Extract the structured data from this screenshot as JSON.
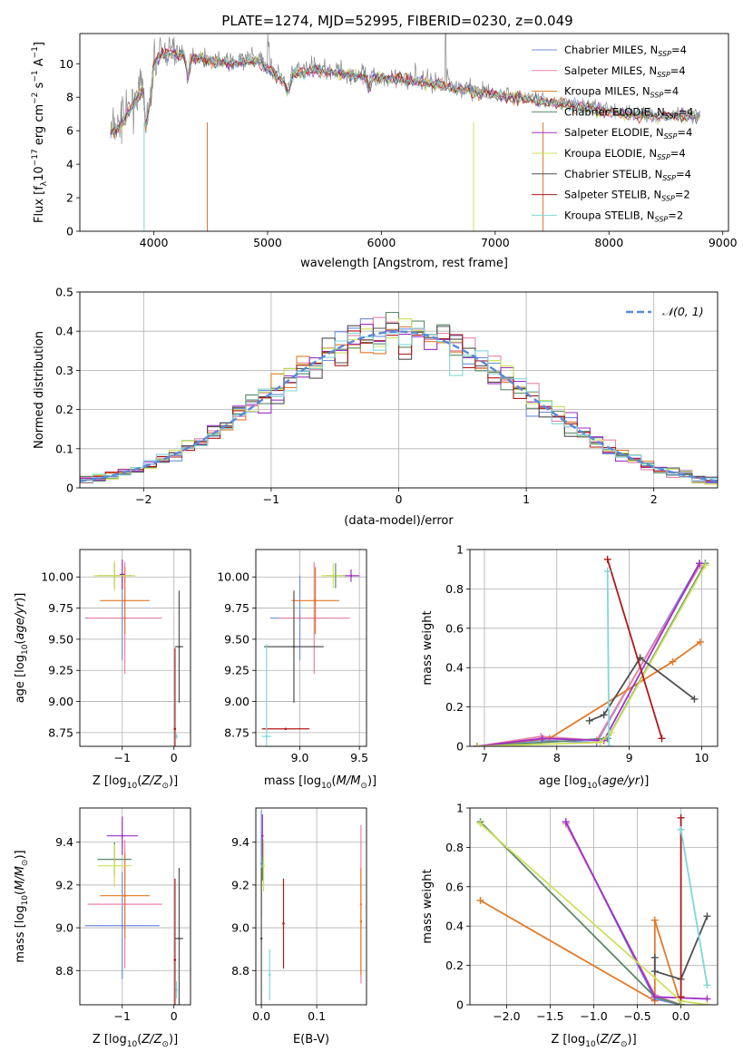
{
  "title": "PLATE=1274, MJD=52995, FIBERID=0230, z=0.049",
  "colors": {
    "chabrier_miles": "#6f8ee0",
    "salpeter_miles": "#ea83a8",
    "kroupa_miles": "#e07a2a",
    "chabrier_elodie": "#5a8a6a",
    "salpeter_elodie": "#a030c8",
    "kroupa_elodie": "#cfe05a",
    "chabrier_stelib": "#505050",
    "salpeter_stelib": "#b01818",
    "kroupa_stelib": "#7fd8d8",
    "data": "#8a8a8a",
    "normal": "#5a8ad8"
  },
  "legend_spectrum": [
    {
      "label": "Chabrier MILES, N",
      "sub": "SSP",
      "tail": "=4",
      "color": "#6f8ee0"
    },
    {
      "label": "Salpeter MILES, N",
      "sub": "SSP",
      "tail": "=4",
      "color": "#ea83a8"
    },
    {
      "label": "Kroupa MILES, N",
      "sub": "SSP",
      "tail": "=4",
      "color": "#e07a2a"
    },
    {
      "label": "Chabrier ELODIE, N",
      "sub": "SSP",
      "tail": "=4",
      "color": "#5a8a6a"
    },
    {
      "label": "Salpeter ELODIE, N",
      "sub": "SSP",
      "tail": "=4",
      "color": "#a030c8"
    },
    {
      "label": "Kroupa ELODIE, N",
      "sub": "SSP",
      "tail": "=4",
      "color": "#cfe05a"
    },
    {
      "label": "Chabrier STELIB, N",
      "sub": "SSP",
      "tail": "=4",
      "color": "#505050"
    },
    {
      "label": "Salpeter STELIB, N",
      "sub": "SSP",
      "tail": "=2",
      "color": "#b01818"
    },
    {
      "label": "Kroupa STELIB, N",
      "sub": "SSP",
      "tail": "=2",
      "color": "#7fd8d8"
    }
  ],
  "legend_hist": {
    "label": "𝒩(0, 1)"
  },
  "chart_data": [
    {
      "id": "spectrum",
      "type": "line",
      "xlabel": "wavelength [Angstrom, rest frame]",
      "ylabel": "Flux [f",
      "xlim": [
        3350,
        9050
      ],
      "ylim": [
        0,
        11.8
      ],
      "xticks": [
        4000,
        5000,
        6000,
        7000,
        8000,
        9000
      ],
      "yticks": [
        0,
        2,
        4,
        6,
        8,
        10
      ],
      "continuum": {
        "x": [
          3600,
          3700,
          3800,
          3900,
          4000,
          4100,
          4300,
          4500,
          4700,
          4900,
          5100,
          5200,
          5400,
          5600,
          5900,
          6200,
          6500,
          6700,
          7000,
          7300,
          7600,
          7900,
          8200,
          8500,
          8800
        ],
        "y": [
          5.9,
          6.4,
          7.5,
          8.6,
          10.2,
          10.8,
          10.6,
          10.3,
          10.1,
          10.4,
          9.3,
          9.5,
          9.8,
          9.6,
          9.3,
          9.2,
          8.9,
          8.6,
          8.3,
          8.0,
          7.7,
          7.4,
          7.1,
          7.0,
          7.0
        ]
      }
    },
    {
      "id": "residuals",
      "type": "area",
      "xlabel": "(data-model)/error",
      "ylabel": "Normed distribution",
      "xlim": [
        -2.5,
        2.5
      ],
      "ylim": [
        0,
        0.5
      ],
      "xticks": [
        -2,
        -1,
        0,
        1,
        2
      ],
      "xtick_labels": [
        "−2",
        "−1",
        "0",
        "1",
        "2"
      ],
      "yticks": [
        0.0,
        0.1,
        0.2,
        0.3,
        0.4,
        0.5
      ],
      "grid": true,
      "legend_position": "top-right",
      "bin_width": 0.1
    },
    {
      "id": "z_vs_age",
      "type": "scatter",
      "xlabel": "Z [log",
      "ylabel": "age  [log",
      "xlim": [
        -1.82,
        0.32
      ],
      "ylim": [
        8.64,
        10.22
      ],
      "xticks": [
        -1,
        0
      ],
      "xtick_labels": [
        "−1",
        "0"
      ],
      "yticks": [
        8.75,
        9.0,
        9.25,
        9.5,
        9.75,
        10.0
      ],
      "ytick_labels": [
        "8.75",
        "9.00",
        "9.25",
        "9.50",
        "9.75",
        "10.00"
      ],
      "points": [
        {
          "series": "Chabrier MILES",
          "x": -1.0,
          "y": 9.67,
          "xerr": 0.72,
          "yerr": 0.34,
          "color": "#6f8ee0"
        },
        {
          "series": "Salpeter MILES",
          "x": -0.95,
          "y": 9.67,
          "xerr": 0.72,
          "yerr": 0.45,
          "color": "#ea83a8"
        },
        {
          "series": "Kroupa MILES",
          "x": -0.95,
          "y": 9.81,
          "xerr": 0.48,
          "yerr": 0.27,
          "color": "#e07a2a"
        },
        {
          "series": "Chabrier ELODIE",
          "x": -1.15,
          "y": 10.01,
          "xerr": 0.33,
          "yerr": 0.1,
          "color": "#5a8a6a"
        },
        {
          "series": "Salpeter ELODIE",
          "x": -1.0,
          "y": 10.02,
          "xerr": 0.05,
          "yerr": 0.12,
          "color": "#a030c8"
        },
        {
          "series": "Kroupa ELODIE",
          "x": -1.15,
          "y": 10.01,
          "xerr": 0.4,
          "yerr": 0.12,
          "color": "#cfe05a"
        },
        {
          "series": "Chabrier STELIB",
          "x": 0.1,
          "y": 9.44,
          "xerr": 0.08,
          "yerr": 0.45,
          "color": "#505050"
        },
        {
          "series": "Salpeter STELIB",
          "x": 0.02,
          "y": 8.78,
          "xerr": 0.0,
          "yerr": 0.65,
          "color": "#b01818"
        },
        {
          "series": "Kroupa STELIB",
          "x": 0.05,
          "y": 8.72,
          "xerr": 0.02,
          "yerr": 0.02,
          "color": "#7fd8d8"
        }
      ]
    },
    {
      "id": "mass_vs_age",
      "type": "scatter",
      "xlabel": "mass [log",
      "xlim": [
        8.63,
        9.56
      ],
      "ylim": [
        8.64,
        10.22
      ],
      "xticks": [
        9.0,
        9.5
      ],
      "xtick_labels": [
        "9.0",
        "9.5"
      ],
      "yticks": [
        8.75,
        9.0,
        9.25,
        9.5,
        9.75,
        10.0
      ],
      "ytick_labels": [
        "8.75",
        "9.00",
        "9.25",
        "9.50",
        "9.75",
        "10.00"
      ],
      "points": [
        {
          "series": "Chabrier MILES",
          "x": 9.0,
          "y": 9.67,
          "xerr": 0.25,
          "yerr": 0.34,
          "color": "#6f8ee0"
        },
        {
          "series": "Salpeter MILES",
          "x": 9.12,
          "y": 9.67,
          "xerr": 0.3,
          "yerr": 0.45,
          "color": "#ea83a8"
        },
        {
          "series": "Kroupa MILES",
          "x": 9.13,
          "y": 9.81,
          "xerr": 0.2,
          "yerr": 0.27,
          "color": "#e07a2a"
        },
        {
          "series": "Chabrier ELODIE",
          "x": 9.3,
          "y": 10.01,
          "xerr": 0.08,
          "yerr": 0.1,
          "color": "#5a8a6a"
        },
        {
          "series": "Salpeter ELODIE",
          "x": 9.43,
          "y": 10.01,
          "xerr": 0.07,
          "yerr": 0.05,
          "color": "#a030c8"
        },
        {
          "series": "Kroupa ELODIE",
          "x": 9.28,
          "y": 10.01,
          "xerr": 0.1,
          "yerr": 0.1,
          "color": "#cfe05a"
        },
        {
          "series": "Chabrier STELIB",
          "x": 8.95,
          "y": 9.44,
          "xerr": 0.25,
          "yerr": 0.45,
          "color": "#505050"
        },
        {
          "series": "Salpeter STELIB",
          "x": 8.88,
          "y": 8.78,
          "xerr": 0.2,
          "yerr": 0.0,
          "color": "#b01818"
        },
        {
          "series": "Kroupa STELIB",
          "x": 8.72,
          "y": 8.72,
          "xerr": 0.04,
          "yerr": 0.74,
          "color": "#7fd8d8"
        }
      ]
    },
    {
      "id": "age_weights",
      "type": "line",
      "xlabel": "age  [log",
      "ylabel": "mass weight",
      "xlim": [
        6.8,
        10.22
      ],
      "ylim": [
        0,
        1
      ],
      "xticks": [
        7,
        8,
        9,
        10
      ],
      "yticks": [
        0.0,
        0.2,
        0.4,
        0.6,
        0.8,
        1.0
      ],
      "series": [
        {
          "name": "Chabrier MILES",
          "color": "#6f8ee0",
          "points": [
            [
              6.9,
              0.0
            ],
            [
              7.78,
              0.03
            ],
            [
              8.55,
              0.02
            ],
            [
              9.97,
              0.93
            ]
          ]
        },
        {
          "name": "Salpeter MILES",
          "color": "#ea83a8",
          "points": [
            [
              6.9,
              0.0
            ],
            [
              7.78,
              0.05
            ],
            [
              8.55,
              0.03
            ],
            [
              9.98,
              0.92
            ]
          ]
        },
        {
          "name": "Kroupa MILES",
          "color": "#e07a2a",
          "points": [
            [
              6.9,
              0.0
            ],
            [
              7.9,
              0.04
            ],
            [
              9.6,
              0.43
            ],
            [
              9.98,
              0.53
            ]
          ]
        },
        {
          "name": "Chabrier ELODIE",
          "color": "#5a8a6a",
          "points": [
            [
              6.9,
              0.0
            ],
            [
              8.7,
              0.04
            ],
            [
              10.05,
              0.93
            ]
          ]
        },
        {
          "name": "Salpeter ELODIE",
          "color": "#a030c8",
          "points": [
            [
              6.9,
              0.0
            ],
            [
              7.8,
              0.04
            ],
            [
              8.65,
              0.03
            ],
            [
              9.97,
              0.93
            ]
          ]
        },
        {
          "name": "Kroupa ELODIE",
          "color": "#cfe05a",
          "points": [
            [
              6.9,
              0.0
            ],
            [
              8.6,
              0.02
            ],
            [
              8.75,
              0.07
            ],
            [
              10.05,
              0.92
            ]
          ]
        },
        {
          "name": "Chabrier STELIB",
          "color": "#505050",
          "points": [
            [
              8.45,
              0.13
            ],
            [
              8.65,
              0.16
            ],
            [
              9.15,
              0.45
            ],
            [
              9.9,
              0.24
            ]
          ]
        },
        {
          "name": "Salpeter STELIB",
          "color": "#b01818",
          "points": [
            [
              8.7,
              0.95
            ],
            [
              9.45,
              0.04
            ]
          ]
        },
        {
          "name": "Kroupa STELIB",
          "color": "#7fd8d8",
          "points": [
            [
              8.7,
              0.89
            ],
            [
              8.72,
              0.0
            ]
          ]
        }
      ]
    },
    {
      "id": "z_vs_mass",
      "type": "scatter",
      "xlabel": "Z [log",
      "ylabel": "mass [log",
      "xlim": [
        -1.82,
        0.32
      ],
      "ylim": [
        8.64,
        9.56
      ],
      "xticks": [
        -1,
        0
      ],
      "xtick_labels": [
        "−1",
        "0"
      ],
      "yticks": [
        8.8,
        9.0,
        9.2,
        9.4
      ],
      "ytick_labels": [
        "8.8",
        "9.0",
        "9.2",
        "9.4"
      ],
      "points": [
        {
          "series": "Chabrier MILES",
          "x": -1.0,
          "y": 9.01,
          "xerr": 0.72,
          "yerr": 0.25,
          "color": "#6f8ee0"
        },
        {
          "series": "Salpeter MILES",
          "x": -0.95,
          "y": 9.11,
          "xerr": 0.72,
          "yerr": 0.3,
          "color": "#ea83a8"
        },
        {
          "series": "Kroupa MILES",
          "x": -0.95,
          "y": 9.15,
          "xerr": 0.48,
          "yerr": 0.2,
          "color": "#e07a2a"
        },
        {
          "series": "Chabrier ELODIE",
          "x": -1.15,
          "y": 9.32,
          "xerr": 0.33,
          "yerr": 0.08,
          "color": "#5a8a6a"
        },
        {
          "series": "Salpeter ELODIE",
          "x": -1.0,
          "y": 9.43,
          "xerr": 0.3,
          "yerr": 0.09,
          "color": "#a030c8"
        },
        {
          "series": "Kroupa ELODIE",
          "x": -1.15,
          "y": 9.29,
          "xerr": 0.33,
          "yerr": 0.1,
          "color": "#cfe05a"
        },
        {
          "series": "Chabrier STELIB",
          "x": 0.1,
          "y": 8.95,
          "xerr": 0.08,
          "yerr": 0.33,
          "color": "#505050"
        },
        {
          "series": "Salpeter STELIB",
          "x": 0.02,
          "y": 8.85,
          "xerr": 0.0,
          "yerr": 0.38,
          "color": "#b01818"
        },
        {
          "series": "Kroupa STELIB",
          "x": 0.05,
          "y": 8.71,
          "xerr": 0.02,
          "yerr": 0.04,
          "color": "#7fd8d8"
        }
      ]
    },
    {
      "id": "ebv_vs_mass",
      "type": "scatter",
      "xlabel": "E(B-V)",
      "xlim": [
        -0.01,
        0.19
      ],
      "ylim": [
        8.64,
        9.56
      ],
      "xticks": [
        0.0,
        0.1
      ],
      "xtick_labels": [
        "0.0",
        "0.1"
      ],
      "yticks": [
        8.8,
        9.0,
        9.2,
        9.4
      ],
      "ytick_labels": [
        "8.8",
        "9.0",
        "9.2",
        "9.4"
      ],
      "points": [
        {
          "series": "Chabrier MILES",
          "x": 0.0,
          "y": 9.3,
          "xerr": 0.0,
          "yerr": 0.25,
          "color": "#6f8ee0"
        },
        {
          "series": "Salpeter MILES",
          "x": 0.18,
          "y": 9.11,
          "xerr": 0.0,
          "yerr": 0.37,
          "color": "#ea83a8"
        },
        {
          "series": "Kroupa MILES",
          "x": 0.18,
          "y": 9.03,
          "xerr": 0.0,
          "yerr": 0.25,
          "color": "#e07a2a"
        },
        {
          "series": "Chabrier ELODIE",
          "x": 0.002,
          "y": 9.32,
          "xerr": 0.0,
          "yerr": 0.1,
          "color": "#5a8a6a"
        },
        {
          "series": "Salpeter ELODIE",
          "x": 0.002,
          "y": 9.43,
          "xerr": 0.0,
          "yerr": 0.1,
          "color": "#a030c8"
        },
        {
          "series": "Kroupa ELODIE",
          "x": 0.004,
          "y": 9.29,
          "xerr": 0.0,
          "yerr": 0.12,
          "color": "#cfe05a"
        },
        {
          "series": "Chabrier STELIB",
          "x": 0.0,
          "y": 8.95,
          "xerr": 0.0,
          "yerr": 0.33,
          "color": "#505050"
        },
        {
          "series": "Salpeter STELIB",
          "x": 0.04,
          "y": 9.02,
          "xerr": 0.0,
          "yerr": 0.21,
          "color": "#b01818"
        },
        {
          "series": "Kroupa STELIB",
          "x": 0.015,
          "y": 8.78,
          "xerr": 0.0,
          "yerr": 0.12,
          "color": "#7fd8d8"
        }
      ]
    },
    {
      "id": "z_weights",
      "type": "line",
      "xlabel": "Z [log",
      "ylabel": "mass weight",
      "xlim": [
        -2.42,
        0.42
      ],
      "ylim": [
        0,
        1
      ],
      "xticks": [
        -2.0,
        -1.5,
        -1.0,
        -0.5,
        0.0
      ],
      "xtick_labels": [
        "−2.0",
        "−1.5",
        "−1.0",
        "−0.5",
        "0.0"
      ],
      "yticks": [
        0.0,
        0.2,
        0.4,
        0.6,
        0.8,
        1.0
      ],
      "series": [
        {
          "name": "Chabrier MILES",
          "color": "#6f8ee0",
          "points": [
            [
              -1.32,
              0.93
            ],
            [
              -0.3,
              0.03
            ],
            [
              0.0,
              0.0
            ]
          ]
        },
        {
          "name": "Salpeter MILES",
          "color": "#ea83a8",
          "points": [
            [
              -1.32,
              0.92
            ],
            [
              -0.3,
              0.05
            ],
            [
              0.0,
              0.0
            ]
          ]
        },
        {
          "name": "Kroupa MILES",
          "color": "#e07a2a",
          "points": [
            [
              -2.3,
              0.53
            ],
            [
              -0.3,
              0.02
            ],
            [
              -0.3,
              0.43
            ],
            [
              0.0,
              0.0
            ]
          ]
        },
        {
          "name": "Chabrier ELODIE",
          "color": "#5a8a6a",
          "points": [
            [
              -2.3,
              0.93
            ],
            [
              -0.3,
              0.04
            ],
            [
              0.0,
              0.0
            ]
          ]
        },
        {
          "name": "Salpeter ELODIE",
          "color": "#a030c8",
          "points": [
            [
              -1.32,
              0.93
            ],
            [
              -0.3,
              0.04
            ],
            [
              0.3,
              0.03
            ]
          ]
        },
        {
          "name": "Kroupa ELODIE",
          "color": "#cfe05a",
          "points": [
            [
              -2.3,
              0.92
            ],
            [
              0.0,
              0.02
            ],
            [
              0.3,
              0.0
            ]
          ]
        },
        {
          "name": "Chabrier STELIB",
          "color": "#505050",
          "points": [
            [
              -0.3,
              0.24
            ],
            [
              -0.3,
              0.17
            ],
            [
              0.0,
              0.13
            ],
            [
              0.3,
              0.45
            ]
          ]
        },
        {
          "name": "Salpeter STELIB",
          "color": "#b01818",
          "points": [
            [
              0.0,
              0.95
            ],
            [
              0.0,
              0.04
            ]
          ]
        },
        {
          "name": "Kroupa STELIB",
          "color": "#7fd8d8",
          "points": [
            [
              0.0,
              0.89
            ],
            [
              0.3,
              0.1
            ]
          ]
        }
      ]
    }
  ]
}
